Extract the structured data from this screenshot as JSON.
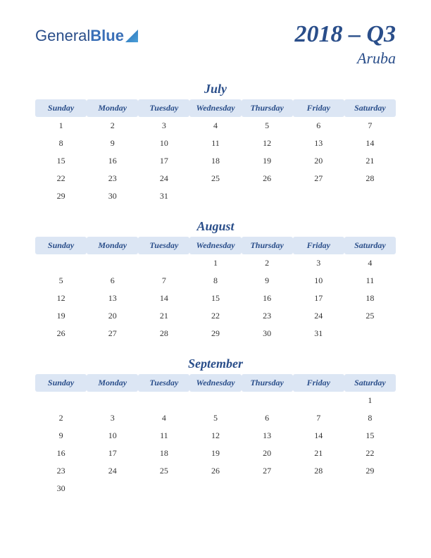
{
  "logo": {
    "part1": "General",
    "part2": "Blue"
  },
  "title": {
    "main": "2018 – Q3",
    "sub": "Aruba"
  },
  "colors": {
    "accent": "#2a4e8a",
    "header_bg": "#dce6f4",
    "text": "#333333",
    "page_bg": "#ffffff"
  },
  "day_headers": [
    "Sunday",
    "Monday",
    "Tuesday",
    "Wednesday",
    "Thursday",
    "Friday",
    "Saturday"
  ],
  "months": [
    {
      "name": "July",
      "weeks": [
        [
          "1",
          "2",
          "3",
          "4",
          "5",
          "6",
          "7"
        ],
        [
          "8",
          "9",
          "10",
          "11",
          "12",
          "13",
          "14"
        ],
        [
          "15",
          "16",
          "17",
          "18",
          "19",
          "20",
          "21"
        ],
        [
          "22",
          "23",
          "24",
          "25",
          "26",
          "27",
          "28"
        ],
        [
          "29",
          "30",
          "31",
          "",
          "",
          "",
          ""
        ]
      ]
    },
    {
      "name": "August",
      "weeks": [
        [
          "",
          "",
          "",
          "1",
          "2",
          "3",
          "4"
        ],
        [
          "5",
          "6",
          "7",
          "8",
          "9",
          "10",
          "11"
        ],
        [
          "12",
          "13",
          "14",
          "15",
          "16",
          "17",
          "18"
        ],
        [
          "19",
          "20",
          "21",
          "22",
          "23",
          "24",
          "25"
        ],
        [
          "26",
          "27",
          "28",
          "29",
          "30",
          "31",
          ""
        ]
      ]
    },
    {
      "name": "September",
      "weeks": [
        [
          "",
          "",
          "",
          "",
          "",
          "",
          "1"
        ],
        [
          "2",
          "3",
          "4",
          "5",
          "6",
          "7",
          "8"
        ],
        [
          "9",
          "10",
          "11",
          "12",
          "13",
          "14",
          "15"
        ],
        [
          "16",
          "17",
          "18",
          "19",
          "20",
          "21",
          "22"
        ],
        [
          "23",
          "24",
          "25",
          "26",
          "27",
          "28",
          "29"
        ],
        [
          "30",
          "",
          "",
          "",
          "",
          "",
          ""
        ]
      ]
    }
  ]
}
